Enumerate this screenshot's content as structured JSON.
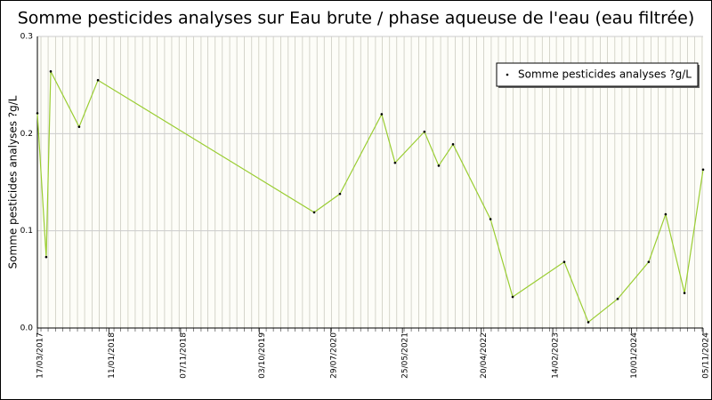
{
  "chart_data": {
    "type": "line",
    "title": "Somme pesticides analyses sur Eau brute / phase aqueuse de l'eau (eau filtrée)",
    "y_label": "Somme pesticides analyses ?g/L",
    "x": [
      "17/03/2017",
      "23/04/2017",
      "12/05/2017",
      "08/09/2017",
      "26/11/2017",
      "20/05/2020",
      "05/09/2020",
      "27/02/2021",
      "24/04/2021",
      "25/08/2021",
      "24/10/2021",
      "23/12/2021",
      "29/05/2022",
      "30/08/2022",
      "03/04/2023",
      "13/07/2023",
      "13/11/2023",
      "22/03/2024",
      "01/06/2024",
      "19/08/2024",
      "05/11/2024"
    ],
    "series": [
      {
        "name": "Somme pesticides analyses ?g/L",
        "color": "#9acd32",
        "values": [
          0.221,
          0.073,
          0.264,
          0.207,
          0.255,
          0.119,
          0.138,
          0.22,
          0.17,
          0.202,
          0.167,
          0.189,
          0.112,
          0.032,
          0.068,
          0.006,
          0.03,
          0.068,
          0.117,
          0.036,
          0.163
        ]
      }
    ],
    "xlim": [
      "17/03/2017",
      "05/11/2024"
    ],
    "xticks": [
      "17/03/2017",
      "11/01/2018",
      "07/11/2018",
      "03/10/2019",
      "29/07/2020",
      "25/05/2021",
      "20/04/2022",
      "14/02/2023",
      "10/01/2024",
      "05/11/2024"
    ],
    "ylim": [
      0,
      0.3
    ],
    "yticks": [
      {
        "value": 0,
        "label": "0.0"
      },
      0.1,
      0.2,
      0.3
    ],
    "grid": true,
    "legend": "top-right"
  }
}
